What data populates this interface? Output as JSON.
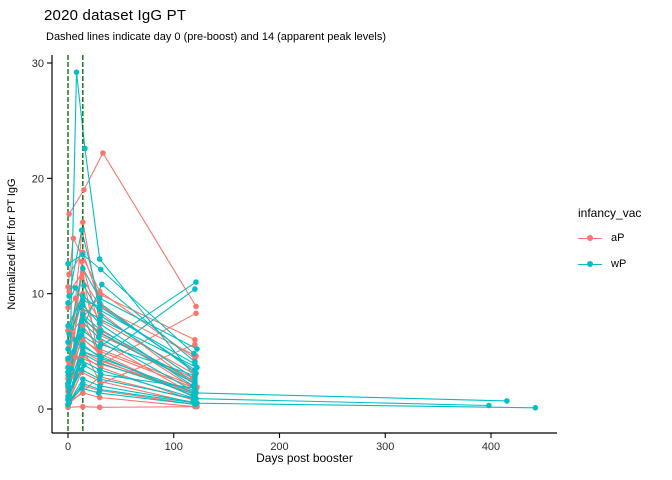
{
  "chart_data": {
    "type": "line",
    "title": "2020 dataset IgG PT",
    "subtitle": "Dashed lines indicate day 0 (pre-boost) and 14 (apparent peak levels)",
    "xlabel": "Days post booster",
    "ylabel": "Normalized MFI for PT IgG",
    "x_ticks": [
      0,
      100,
      200,
      300,
      400
    ],
    "y_ticks": [
      0,
      10,
      20,
      30
    ],
    "xlim": [
      -20,
      462
    ],
    "ylim": [
      0,
      30.6
    ],
    "grid": false,
    "theme": "classic-white-no-grid",
    "legend": {
      "title": "infancy_vac",
      "position": "right"
    },
    "vlines": [
      {
        "x": 0,
        "meaning": "day 0 (pre-boost)",
        "color": "#0B6E0B",
        "linetype": "dashed"
      },
      {
        "x": 14,
        "meaning": "day 14 (apparent peak levels)",
        "color": "#0B6E0B",
        "linetype": "dashed"
      }
    ],
    "series": [
      {
        "name": "aP",
        "color": "#F8766D",
        "lines": [
          [
            [
              1,
              16.9
            ],
            [
              15,
              19.0
            ],
            [
              33,
              22.2
            ],
            [
              121,
              8.9
            ]
          ],
          [
            [
              0,
              10.6
            ],
            [
              5,
              14.8
            ],
            [
              30,
              10.2
            ],
            [
              120,
              4.4
            ]
          ],
          [
            [
              1,
              11.7
            ],
            [
              14,
              13.6
            ],
            [
              31,
              9.0
            ],
            [
              119,
              3.3
            ]
          ],
          [
            [
              0,
              2.6
            ],
            [
              14,
              16.2
            ],
            [
              30,
              8.4
            ],
            [
              120,
              2.1
            ]
          ],
          [
            [
              1,
              1.4
            ],
            [
              13,
              12.8
            ],
            [
              30,
              7.0
            ],
            [
              121,
              1.7
            ]
          ],
          [
            [
              0,
              0.9
            ],
            [
              14,
              9.4
            ],
            [
              31,
              5.8
            ],
            [
              120,
              1.2
            ]
          ],
          [
            [
              1,
              3.4
            ],
            [
              14,
              8.0
            ],
            [
              30,
              6.4
            ],
            [
              118,
              2.7
            ]
          ],
          [
            [
              0,
              1.8
            ],
            [
              13,
              6.2
            ],
            [
              30,
              4.8
            ],
            [
              120,
              1.0
            ]
          ],
          [
            [
              1,
              0.5
            ],
            [
              14,
              4.6
            ],
            [
              31,
              3.6
            ],
            [
              120,
              0.7
            ]
          ],
          [
            [
              0,
              2.2
            ],
            [
              14,
              7.2
            ],
            [
              30,
              5.2
            ],
            [
              122,
              1.9
            ]
          ],
          [
            [
              1,
              0.7
            ],
            [
              13,
              3.2
            ],
            [
              30,
              2.4
            ],
            [
              120,
              0.5
            ]
          ],
          [
            [
              0,
              4.2
            ],
            [
              14,
              10.0
            ],
            [
              31,
              7.6
            ],
            [
              120,
              3.0
            ]
          ],
          [
            [
              1,
              1.1
            ],
            [
              14,
              5.0
            ],
            [
              30,
              4.2
            ],
            [
              119,
              1.4
            ]
          ],
          [
            [
              0,
              0.3
            ],
            [
              14,
              2.0
            ],
            [
              30,
              1.6
            ],
            [
              120,
              0.4
            ]
          ],
          [
            [
              1,
              5.4
            ],
            [
              13,
              11.4
            ],
            [
              31,
              8.8
            ],
            [
              121,
              4.6
            ]
          ],
          [
            [
              0,
              2.9
            ],
            [
              3,
              6.6
            ],
            [
              31,
              9.9
            ],
            [
              120,
              6.0
            ]
          ],
          [
            [
              1,
              0.6
            ],
            [
              14,
              1.4
            ],
            [
              30,
              1.0
            ],
            [
              120,
              0.2
            ]
          ],
          [
            [
              0,
              1.9
            ],
            [
              13,
              4.4
            ],
            [
              30,
              3.8
            ],
            [
              121,
              8.3
            ]
          ],
          [
            [
              1,
              3.8
            ],
            [
              14,
              7.8
            ],
            [
              31,
              6.6
            ],
            [
              120,
              2.3
            ]
          ],
          [
            [
              0,
              0.4
            ],
            [
              30,
              2.8
            ],
            [
              120,
              0.8
            ]
          ],
          [
            [
              1,
              10.2
            ],
            [
              14,
              11.8
            ],
            [
              30,
              3.9
            ],
            [
              120,
              1.6
            ]
          ],
          [
            [
              0,
              6.8
            ],
            [
              14,
              5.2
            ],
            [
              31,
              2.2
            ],
            [
              120,
              5.6
            ]
          ],
          [
            [
              0,
              1.5
            ],
            [
              3,
              2.8
            ],
            [
              7,
              4.5
            ],
            [
              14,
              6.0
            ],
            [
              30,
              5.0
            ],
            [
              120,
              1.8
            ]
          ],
          [
            [
              0,
              8.8
            ],
            [
              7,
              9.6
            ],
            [
              14,
              8.4
            ],
            [
              30,
              4.3
            ],
            [
              120,
              1.1
            ]
          ],
          [
            [
              0,
              0.15
            ],
            [
              14,
              0.2
            ],
            [
              30,
              0.15
            ],
            [
              122,
              0.2
            ]
          ]
        ]
      },
      {
        "name": "wP",
        "color": "#00BFC4",
        "lines": [
          [
            [
              1,
              1.0
            ],
            [
              8,
              29.2
            ],
            [
              16,
              22.6
            ],
            [
              30,
              13.0
            ],
            [
              120,
              2.8
            ]
          ],
          [
            [
              0,
              12.6
            ],
            [
              14,
              13.4
            ],
            [
              31,
              12.1
            ],
            [
              119,
              4.8
            ]
          ],
          [
            [
              1,
              9.8
            ],
            [
              13,
              15.5
            ],
            [
              30,
              9.2
            ],
            [
              121,
              3.1
            ]
          ],
          [
            [
              0,
              5.2
            ],
            [
              15,
              10.7
            ],
            [
              31,
              8.1
            ],
            [
              120,
              2.6
            ]
          ],
          [
            [
              1,
              3.0
            ],
            [
              14,
              9.0
            ],
            [
              30,
              7.4
            ],
            [
              118,
              2.0
            ]
          ],
          [
            [
              0,
              2.2
            ],
            [
              13,
              7.6
            ],
            [
              29,
              6.2
            ],
            [
              120,
              1.5
            ]
          ],
          [
            [
              1,
              6.5
            ],
            [
              12,
              8.8
            ],
            [
              30,
              7.8
            ],
            [
              122,
              3.6
            ]
          ],
          [
            [
              0,
              4.4
            ],
            [
              14,
              6.8
            ],
            [
              31,
              5.6
            ],
            [
              120,
              2.9
            ]
          ],
          [
            [
              1,
              1.2
            ],
            [
              14,
              5.4
            ],
            [
              30,
              4.6
            ],
            [
              119,
              1.1
            ]
          ],
          [
            [
              0,
              0.8
            ],
            [
              13,
              4.2
            ],
            [
              30,
              3.4
            ],
            [
              121,
              0.9
            ]
          ],
          [
            [
              1,
              2.8
            ],
            [
              10,
              6.2
            ],
            [
              32,
              10.8
            ],
            [
              120,
              4.1
            ]
          ],
          [
            [
              0,
              0.4
            ],
            [
              14,
              2.6
            ],
            [
              30,
              2.0
            ],
            [
              118,
              0.6
            ]
          ],
          [
            [
              1,
              1.6
            ],
            [
              15,
              3.8
            ],
            [
              31,
              3.0
            ],
            [
              120,
              1.8
            ]
          ],
          [
            [
              0,
              5.8
            ],
            [
              14,
              12.2
            ],
            [
              30,
              9.6
            ],
            [
              122,
              5.2
            ]
          ],
          [
            [
              1,
              0.6
            ],
            [
              13,
              1.8
            ],
            [
              29,
              1.4
            ],
            [
              120,
              0.4
            ]
          ],
          [
            [
              0,
              3.6
            ],
            [
              14,
              8.2
            ],
            [
              31,
              6.8
            ],
            [
              120,
              2.4
            ]
          ],
          [
            [
              1,
              1.0
            ],
            [
              14,
              4.8
            ],
            [
              30,
              4.0
            ],
            [
              119,
              1.3
            ]
          ],
          [
            [
              0,
              3.2
            ],
            [
              13,
              6.4
            ],
            [
              30,
              5.4
            ],
            [
              121,
              11.0
            ]
          ],
          [
            [
              1,
              2.4
            ],
            [
              14,
              5.0
            ],
            [
              31,
              4.4
            ],
            [
              120,
              10.4
            ]
          ],
          [
            [
              0,
              7.2
            ],
            [
              14,
              9.8
            ],
            [
              30,
              8.6
            ],
            [
              120,
              3.9
            ]
          ],
          [
            [
              1,
              1.9
            ],
            [
              14,
              5.6
            ],
            [
              31,
              4.4
            ],
            [
              121,
              1.4
            ],
            [
              415,
              0.7
            ]
          ],
          [
            [
              0,
              1.1
            ],
            [
              13,
              3.4
            ],
            [
              30,
              2.6
            ],
            [
              119,
              0.9
            ],
            [
              398,
              0.3
            ]
          ],
          [
            [
              1,
              0.6
            ],
            [
              14,
              2.2
            ],
            [
              30,
              1.7
            ],
            [
              122,
              0.5
            ],
            [
              442,
              0.1
            ]
          ],
          [
            [
              0,
              2.0
            ],
            [
              3,
              3.5
            ],
            [
              7,
              6.0
            ],
            [
              14,
              7.8
            ],
            [
              30,
              6.6
            ],
            [
              120,
              2.2
            ]
          ],
          [
            [
              0,
              9.2
            ],
            [
              7,
              10.5
            ],
            [
              14,
              9.4
            ],
            [
              30,
              8.9
            ],
            [
              120,
              3.4
            ]
          ]
        ]
      }
    ]
  }
}
